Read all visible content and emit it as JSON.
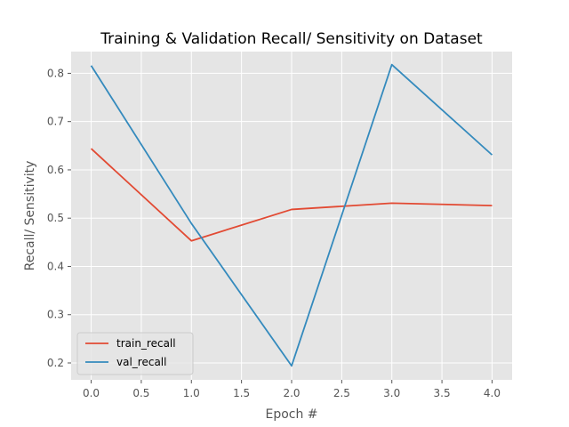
{
  "chart_data": {
    "type": "line",
    "title": "Training & Validation Recall/ Sensitivity on Dataset",
    "xlabel": "Epoch #",
    "ylabel": "Recall/ Sensitivity",
    "x": [
      0,
      1,
      2,
      3,
      4
    ],
    "xlim": [
      -0.2,
      4.2
    ],
    "ylim": [
      0.165,
      0.845
    ],
    "xticks": [
      0.0,
      0.5,
      1.0,
      1.5,
      2.0,
      2.5,
      3.0,
      3.5,
      4.0
    ],
    "xtick_labels": [
      "0.0",
      "0.5",
      "1.0",
      "1.5",
      "2.0",
      "2.5",
      "3.0",
      "3.5",
      "4.0"
    ],
    "yticks": [
      0.2,
      0.3,
      0.4,
      0.5,
      0.6,
      0.7,
      0.8
    ],
    "ytick_labels": [
      "0.2",
      "0.3",
      "0.4",
      "0.5",
      "0.6",
      "0.7",
      "0.8"
    ],
    "grid": true,
    "legend_position": "lower-left",
    "series": [
      {
        "name": "train_recall",
        "color": "#E24A33",
        "values": [
          0.644,
          0.453,
          0.518,
          0.531,
          0.526
        ]
      },
      {
        "name": "val_recall",
        "color": "#348ABD",
        "values": [
          0.816,
          0.489,
          0.194,
          0.818,
          0.631
        ]
      }
    ]
  }
}
